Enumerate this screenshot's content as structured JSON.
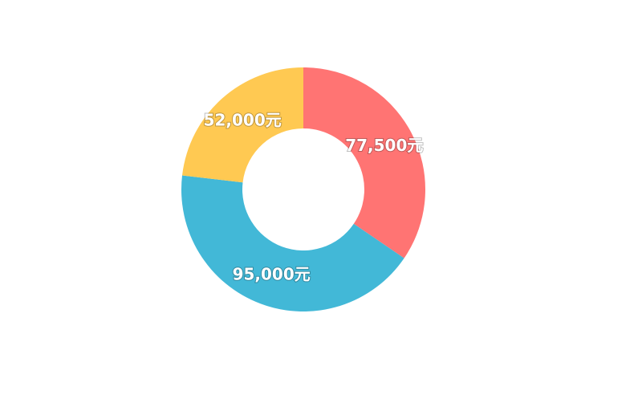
{
  "chart_data": {
    "type": "pie",
    "donut": true,
    "values": [
      77500,
      95000,
      52000
    ],
    "value_labels": [
      "77,500元",
      "95,000元",
      "52,000元"
    ],
    "colors": [
      "#ff7473",
      "#42b8d7",
      "#ffc952"
    ]
  }
}
